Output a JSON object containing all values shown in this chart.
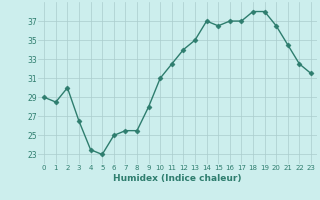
{
  "x": [
    0,
    1,
    2,
    3,
    4,
    5,
    6,
    7,
    8,
    9,
    10,
    11,
    12,
    13,
    14,
    15,
    16,
    17,
    18,
    19,
    20,
    21,
    22,
    23
  ],
  "y": [
    29,
    28.5,
    30,
    26.5,
    23.5,
    23,
    25,
    25.5,
    25.5,
    28,
    31,
    32.5,
    34,
    35,
    37,
    36.5,
    37,
    37,
    38,
    38,
    36.5,
    34.5,
    32.5,
    31.5
  ],
  "line_color": "#2e7d6e",
  "marker": "D",
  "marker_size": 2.5,
  "bg_color": "#cceeed",
  "grid_color": "#aacccc",
  "xlabel": "Humidex (Indice chaleur)",
  "ylabel": "",
  "title": "",
  "yticks": [
    23,
    25,
    27,
    29,
    31,
    33,
    35,
    37
  ],
  "ylim": [
    22.0,
    39.0
  ],
  "xlim": [
    -0.5,
    23.5
  ],
  "xticks": [
    0,
    1,
    2,
    3,
    4,
    5,
    6,
    7,
    8,
    9,
    10,
    11,
    12,
    13,
    14,
    15,
    16,
    17,
    18,
    19,
    20,
    21,
    22,
    23
  ],
  "xtick_fontsize": 5.0,
  "ytick_fontsize": 5.5,
  "xlabel_fontsize": 6.5
}
